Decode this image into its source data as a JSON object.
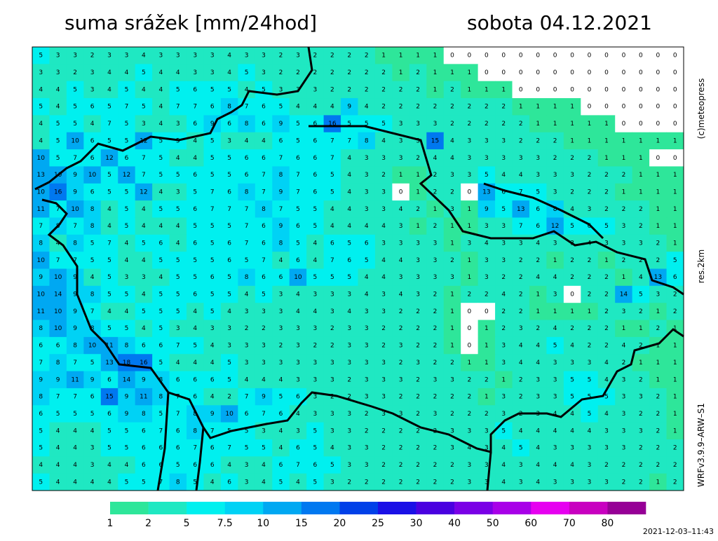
{
  "header": {
    "title": "suma srážek [mm/24hod]",
    "date": "sobota 04.12.2021"
  },
  "credits": {
    "copyright": "(c)meteopress",
    "resolution": "res.2km",
    "model": "WRFv3.9.9–ARW–S1",
    "timestamp": "2021-12-03–11:43"
  },
  "map": {
    "grid": [
      [
        5,
        3,
        3,
        2,
        3,
        3,
        4,
        3,
        3,
        3,
        3,
        4,
        3,
        3,
        2,
        3,
        2,
        2,
        2,
        2,
        1,
        1,
        1,
        1,
        0,
        0,
        0,
        0,
        0,
        0,
        0,
        0,
        0,
        0,
        0,
        0,
        0,
        0
      ],
      [
        3,
        3,
        2,
        3,
        4,
        4,
        5,
        4,
        4,
        3,
        3,
        4,
        5,
        3,
        2,
        2,
        2,
        2,
        2,
        2,
        2,
        1,
        2,
        1,
        1,
        1,
        0,
        0,
        0,
        0,
        0,
        0,
        0,
        0,
        0,
        0,
        0,
        0
      ],
      [
        4,
        4,
        5,
        3,
        4,
        5,
        4,
        4,
        5,
        6,
        5,
        5,
        4,
        5,
        3,
        3,
        3,
        2,
        2,
        2,
        2,
        2,
        2,
        1,
        2,
        1,
        1,
        1,
        0,
        0,
        0,
        0,
        0,
        0,
        0,
        0,
        0,
        0
      ],
      [
        5,
        4,
        5,
        6,
        5,
        7,
        5,
        4,
        7,
        7,
        6,
        8,
        7,
        6,
        5,
        4,
        4,
        4,
        9,
        4,
        2,
        2,
        2,
        2,
        2,
        2,
        2,
        2,
        1,
        1,
        1,
        1,
        0,
        0,
        0,
        0,
        0,
        0
      ],
      [
        4,
        5,
        5,
        4,
        7,
        5,
        3,
        4,
        3,
        6,
        9,
        6,
        8,
        6,
        9,
        5,
        6,
        16,
        5,
        5,
        5,
        3,
        3,
        3,
        2,
        2,
        2,
        2,
        2,
        1,
        1,
        1,
        1,
        1,
        0,
        0,
        0,
        0
      ],
      [
        4,
        5,
        10,
        6,
        5,
        5,
        12,
        5,
        5,
        4,
        5,
        3,
        4,
        4,
        6,
        5,
        6,
        7,
        7,
        8,
        4,
        3,
        3,
        15,
        4,
        3,
        3,
        3,
        2,
        2,
        2,
        1,
        1,
        1,
        1,
        1,
        1,
        1
      ],
      [
        10,
        5,
        7,
        6,
        12,
        6,
        7,
        5,
        4,
        4,
        5,
        5,
        6,
        6,
        7,
        6,
        6,
        7,
        4,
        3,
        3,
        3,
        2,
        4,
        4,
        3,
        3,
        3,
        3,
        3,
        2,
        2,
        2,
        1,
        1,
        1,
        0,
        0
      ],
      [
        13,
        10,
        9,
        10,
        5,
        12,
        7,
        5,
        5,
        6,
        5,
        5,
        6,
        7,
        8,
        7,
        6,
        5,
        4,
        3,
        2,
        1,
        1,
        2,
        3,
        3,
        5,
        4,
        4,
        3,
        3,
        3,
        2,
        2,
        2,
        1,
        1,
        1
      ],
      [
        10,
        16,
        9,
        6,
        5,
        5,
        12,
        4,
        3,
        5,
        7,
        6,
        8,
        7,
        9,
        7,
        6,
        5,
        4,
        3,
        3,
        0,
        1,
        2,
        2,
        0,
        13,
        6,
        7,
        5,
        3,
        2,
        2,
        2,
        1,
        1,
        1,
        1
      ],
      [
        11,
        7,
        10,
        8,
        4,
        5,
        4,
        5,
        5,
        6,
        7,
        7,
        7,
        8,
        7,
        5,
        5,
        4,
        4,
        3,
        3,
        4,
        2,
        1,
        3,
        1,
        9,
        5,
        13,
        6,
        8,
        4,
        3,
        2,
        2,
        2,
        1,
        1
      ],
      [
        7,
        8,
        7,
        8,
        4,
        5,
        4,
        4,
        4,
        5,
        5,
        5,
        7,
        6,
        9,
        6,
        5,
        4,
        4,
        4,
        4,
        3,
        1,
        2,
        1,
        1,
        3,
        3,
        7,
        6,
        12,
        5,
        6,
        5,
        3,
        2,
        1,
        1
      ],
      [
        8,
        4,
        8,
        5,
        7,
        4,
        5,
        6,
        4,
        6,
        5,
        6,
        7,
        6,
        8,
        5,
        4,
        6,
        5,
        6,
        3,
        3,
        3,
        3,
        1,
        3,
        4,
        3,
        3,
        4,
        3,
        3,
        4,
        3,
        3,
        3,
        2,
        1
      ],
      [
        10,
        7,
        7,
        5,
        5,
        4,
        4,
        5,
        5,
        5,
        5,
        6,
        5,
        7,
        4,
        6,
        4,
        7,
        6,
        5,
        4,
        4,
        3,
        3,
        2,
        1,
        3,
        3,
        2,
        2,
        1,
        2,
        2,
        1,
        2,
        2,
        2,
        5
      ],
      [
        9,
        10,
        9,
        4,
        5,
        3,
        3,
        4,
        5,
        5,
        6,
        5,
        8,
        6,
        6,
        10,
        5,
        5,
        5,
        4,
        4,
        3,
        3,
        3,
        3,
        1,
        3,
        2,
        2,
        4,
        4,
        2,
        2,
        2,
        1,
        4,
        13,
        6
      ],
      [
        10,
        14,
        9,
        8,
        5,
        5,
        4,
        5,
        5,
        6,
        5,
        5,
        4,
        5,
        3,
        4,
        3,
        3,
        3,
        4,
        3,
        4,
        3,
        2,
        1,
        2,
        2,
        4,
        2,
        1,
        3,
        0,
        2,
        2,
        14,
        5,
        3,
        2
      ],
      [
        11,
        10,
        9,
        7,
        4,
        4,
        5,
        5,
        5,
        4,
        5,
        4,
        3,
        3,
        3,
        4,
        4,
        3,
        4,
        3,
        3,
        2,
        2,
        2,
        1,
        0,
        0,
        2,
        2,
        1,
        1,
        1,
        1,
        2,
        3,
        2,
        1,
        2
      ],
      [
        8,
        10,
        9,
        8,
        5,
        5,
        4,
        5,
        3,
        4,
        3,
        3,
        2,
        2,
        3,
        3,
        3,
        2,
        3,
        3,
        2,
        2,
        2,
        2,
        1,
        0,
        1,
        2,
        3,
        2,
        4,
        2,
        2,
        2,
        1,
        1,
        2,
        1
      ],
      [
        6,
        6,
        8,
        10,
        11,
        8,
        6,
        6,
        7,
        5,
        4,
        3,
        3,
        3,
        2,
        3,
        2,
        2,
        3,
        3,
        2,
        3,
        2,
        2,
        1,
        0,
        1,
        3,
        4,
        4,
        5,
        4,
        2,
        2,
        4,
        2,
        1,
        1
      ],
      [
        7,
        8,
        7,
        5,
        13,
        18,
        16,
        5,
        4,
        4,
        4,
        5,
        3,
        3,
        3,
        3,
        3,
        3,
        3,
        3,
        3,
        2,
        3,
        2,
        2,
        1,
        1,
        3,
        4,
        4,
        3,
        3,
        3,
        4,
        2,
        1,
        1,
        1
      ],
      [
        9,
        9,
        11,
        9,
        6,
        14,
        9,
        8,
        6,
        6,
        6,
        5,
        4,
        4,
        4,
        3,
        3,
        3,
        2,
        3,
        3,
        3,
        2,
        3,
        3,
        2,
        2,
        1,
        2,
        3,
        3,
        5,
        5,
        4,
        3,
        2,
        1,
        1
      ],
      [
        8,
        7,
        7,
        6,
        15,
        9,
        11,
        8,
        7,
        6,
        4,
        2,
        7,
        9,
        5,
        6,
        3,
        2,
        2,
        3,
        3,
        2,
        2,
        2,
        2,
        2,
        1,
        3,
        2,
        3,
        3,
        5,
        5,
        5,
        3,
        3,
        2,
        1
      ],
      [
        6,
        5,
        5,
        5,
        6,
        9,
        8,
        5,
        7,
        8,
        9,
        10,
        6,
        7,
        6,
        4,
        3,
        3,
        3,
        2,
        3,
        3,
        2,
        3,
        2,
        2,
        2,
        3,
        2,
        3,
        4,
        4,
        5,
        4,
        3,
        2,
        2,
        1
      ],
      [
        5,
        4,
        4,
        4,
        5,
        5,
        6,
        7,
        6,
        8,
        7,
        5,
        5,
        3,
        4,
        3,
        5,
        3,
        3,
        2,
        2,
        2,
        2,
        2,
        3,
        3,
        3,
        5,
        4,
        4,
        4,
        4,
        4,
        3,
        3,
        3,
        2,
        1
      ],
      [
        5,
        4,
        4,
        3,
        5,
        5,
        6,
        6,
        6,
        7,
        6,
        7,
        5,
        5,
        4,
        6,
        5,
        4,
        3,
        3,
        2,
        2,
        2,
        2,
        3,
        4,
        3,
        4,
        5,
        4,
        3,
        3,
        3,
        3,
        3,
        2,
        2,
        2
      ],
      [
        4,
        4,
        4,
        3,
        4,
        4,
        6,
        6,
        5,
        6,
        6,
        4,
        3,
        4,
        6,
        7,
        6,
        5,
        3,
        3,
        2,
        2,
        2,
        2,
        2,
        3,
        3,
        4,
        3,
        4,
        4,
        4,
        3,
        2,
        2,
        2,
        2,
        2
      ],
      [
        5,
        4,
        4,
        4,
        4,
        5,
        5,
        7,
        8,
        5,
        4,
        6,
        3,
        4,
        5,
        4,
        5,
        3,
        2,
        2,
        2,
        2,
        2,
        2,
        2,
        3,
        3,
        4,
        3,
        4,
        3,
        3,
        3,
        3,
        2,
        2,
        1,
        2
      ]
    ]
  },
  "legend": {
    "levels": [
      1,
      2,
      5,
      7.5,
      10,
      15,
      20,
      25,
      30,
      40,
      50,
      60,
      70,
      80
    ],
    "colors": [
      "#2ee69a",
      "#1fe8c2",
      "#00f0ef",
      "#00d2f5",
      "#00a8f2",
      "#0078f0",
      "#0040e8",
      "#1a10e6",
      "#4a00e0",
      "#7a00e6",
      "#a800e8",
      "#e600f0",
      "#c800c0",
      "#960096"
    ]
  }
}
